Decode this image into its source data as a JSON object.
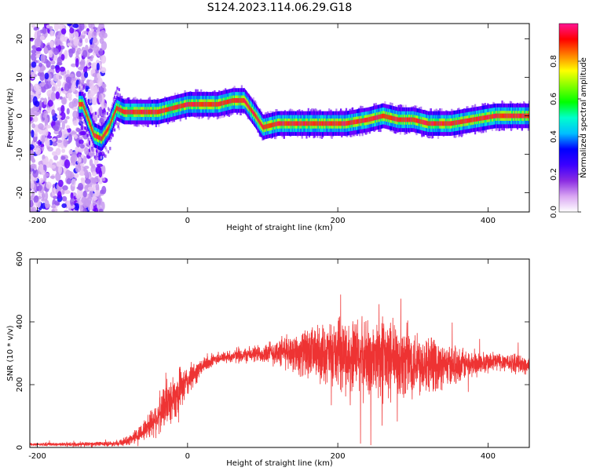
{
  "title": "S124.2023.114.06.29.G18",
  "chart_data": [
    {
      "type": "heatmap",
      "xlabel": "Height of straight line (km)",
      "ylabel": "Frequency (Hz)",
      "xlim": [
        -210,
        455
      ],
      "ylim": [
        -25,
        24
      ],
      "xticks": [
        -200,
        0,
        200,
        400
      ],
      "yticks": [
        -20,
        -10,
        0,
        10,
        20
      ],
      "colorbar": {
        "label": "Normalized spectral amplitude",
        "range": [
          0,
          1
        ],
        "ticks": [
          "0.0",
          "0.2",
          "0.4",
          "0.6",
          "0.8"
        ],
        "colormap": [
          "#ffffff",
          "#d9a6f2",
          "#8a2be2",
          "#3b00ff",
          "#0000ff",
          "#00bfff",
          "#00ffcc",
          "#00ff00",
          "#80ff00",
          "#ffff00",
          "#ff8000",
          "#ff0000",
          "#ff1493"
        ]
      },
      "ridge": {
        "description_points_x": [
          -140,
          -125,
          -115,
          -105,
          -95,
          -85,
          -60,
          -40,
          -20,
          0,
          20,
          40,
          60,
          75,
          90,
          100,
          120,
          150,
          180,
          210,
          240,
          260,
          280,
          300,
          320,
          350,
          380,
          410,
          450
        ],
        "frequency_hz": [
          3,
          -5,
          -6,
          -3,
          2,
          1,
          1,
          1,
          2,
          3,
          3,
          3,
          4,
          4,
          0,
          -3,
          -2,
          -2,
          -2,
          -2,
          -1,
          0,
          -1,
          -1,
          -2,
          -2,
          -1,
          0,
          0
        ]
      }
    },
    {
      "type": "line",
      "xlabel": "Height of straight line (km)",
      "ylabel": "SNR (10 * v/v)",
      "xlim": [
        -210,
        455
      ],
      "ylim": [
        0,
        600
      ],
      "xticks": [
        -200,
        0,
        200,
        400
      ],
      "yticks": [
        0,
        200,
        400,
        600
      ],
      "color": "#ee3333",
      "envelope": {
        "x": [
          -210,
          -150,
          -100,
          -80,
          -60,
          -40,
          -20,
          0,
          20,
          40,
          60,
          100,
          140,
          180,
          220,
          260,
          300,
          340,
          380,
          420,
          455
        ],
        "center": [
          10,
          10,
          12,
          20,
          50,
          100,
          160,
          210,
          260,
          285,
          290,
          300,
          305,
          300,
          290,
          280,
          275,
          260,
          265,
          275,
          260
        ],
        "spread": [
          5,
          6,
          8,
          15,
          30,
          60,
          80,
          50,
          25,
          20,
          20,
          30,
          60,
          90,
          120,
          130,
          110,
          70,
          40,
          30,
          30
        ]
      }
    }
  ]
}
